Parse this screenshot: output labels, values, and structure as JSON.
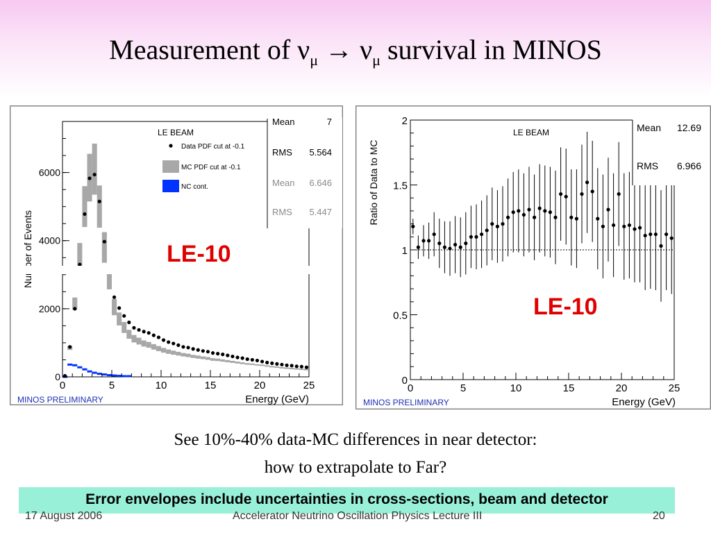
{
  "slide": {
    "title_pre": "Measurement of ν",
    "title_sub1": "μ",
    "title_arrow": " → ν",
    "title_sub2": "μ",
    "title_post": " survival in MINOS",
    "caption_line1": "See 10%-40% data-MC differences in near detector:",
    "caption_line2": "how to extrapolate to Far?",
    "banner": "Error envelopes include uncertainties in cross-sections, beam and detector",
    "footer_date": "17 August 2006",
    "footer_course": "Accelerator Neutrino Oscillation Physics Lecture III",
    "footer_page": "20"
  },
  "colors": {
    "le_label": "#e00000",
    "mc_band": "#a8a8a8",
    "nc_fill": "#0033ff",
    "preliminary": "#1a2fb5",
    "banner": "#99f0d8"
  },
  "chart_data": [
    {
      "type": "scatter",
      "overlay_label": "LE-10",
      "beam_label": "LE BEAM",
      "xlabel": "Energy (GeV)",
      "ylabel": "Number of Events",
      "xlim": [
        0,
        25
      ],
      "ylim": [
        0,
        7500
      ],
      "xticks": [
        "0",
        "5",
        "10",
        "15",
        "20",
        "25"
      ],
      "yticks": [
        "0",
        "2000",
        "4000",
        "6000"
      ],
      "preliminary": "MINOS PRELIMINARY",
      "legend": [
        {
          "label": "Data PDF cut at -0.1",
          "marker": "dot"
        },
        {
          "label": "MC   PDF cut at -0.1",
          "marker": "gray-box"
        },
        {
          "label": "NC cont.",
          "marker": "blue-box"
        }
      ],
      "stats": [
        {
          "key": "Mean",
          "value": "7",
          "faded": false
        },
        {
          "key": "RMS",
          "value": "5.564",
          "faded": false
        },
        {
          "key": "Mean",
          "value": "6.646",
          "faded": true
        },
        {
          "key": "RMS",
          "value": "5.447",
          "faded": true
        }
      ],
      "series": [
        {
          "name": "Data PDF cut at -0.1",
          "x": [
            0.25,
            0.75,
            1.25,
            1.75,
            2.25,
            2.75,
            3.25,
            3.75,
            4.25,
            4.75,
            5.25,
            5.75,
            6.25,
            6.75,
            7.25,
            7.75,
            8.25,
            8.75,
            9.25,
            9.75,
            10.25,
            10.75,
            11.25,
            11.75,
            12.25,
            12.75,
            13.25,
            13.75,
            14.25,
            14.75,
            15.25,
            15.75,
            16.25,
            16.75,
            17.25,
            17.75,
            18.25,
            18.75,
            19.25,
            19.75,
            20.25,
            20.75,
            21.25,
            21.75,
            22.25,
            22.75,
            23.25,
            23.75,
            24.25,
            24.75
          ],
          "y": [
            30,
            880,
            2000,
            3300,
            4780,
            5830,
            5940,
            5150,
            3970,
            3130,
            2340,
            2020,
            1790,
            1600,
            1440,
            1380,
            1330,
            1290,
            1220,
            1160,
            1080,
            1020,
            980,
            930,
            880,
            860,
            820,
            790,
            760,
            740,
            700,
            680,
            660,
            630,
            600,
            570,
            550,
            520,
            500,
            480,
            450,
            420,
            400,
            380,
            360,
            340,
            330,
            310,
            300,
            280
          ]
        },
        {
          "name": "MC   PDF cut at -0.1",
          "x": [
            0.25,
            0.75,
            1.25,
            1.75,
            2.25,
            2.75,
            3.25,
            3.75,
            4.25,
            4.75,
            5.25,
            5.75,
            6.25,
            6.75,
            7.25,
            7.75,
            8.25,
            8.75,
            9.25,
            9.75,
            10.25,
            10.75,
            11.25,
            11.75,
            12.25,
            12.75,
            13.25,
            13.75,
            14.25,
            14.75,
            15.25,
            15.75,
            16.25,
            16.75,
            17.25,
            17.75,
            18.25,
            18.75,
            19.25,
            19.75,
            20.25,
            20.75,
            21.25,
            21.75,
            22.25,
            22.75,
            23.25,
            23.75,
            24.25,
            24.75
          ],
          "y": [
            20,
            850,
            2150,
            3550,
            5000,
            5850,
            6100,
            5000,
            3800,
            2900,
            2050,
            1700,
            1450,
            1250,
            1120,
            1050,
            980,
            940,
            880,
            830,
            780,
            740,
            710,
            680,
            650,
            630,
            600,
            580,
            560,
            540,
            510,
            500,
            480,
            460,
            440,
            420,
            400,
            380,
            370,
            350,
            340,
            320,
            300,
            290,
            270,
            260,
            250,
            240,
            230,
            220
          ],
          "band_halfwidth": [
            20,
            60,
            180,
            380,
            600,
            700,
            750,
            620,
            450,
            330,
            240,
            190,
            160,
            130,
            110,
            100,
            90,
            85,
            80,
            75,
            70,
            65,
            60,
            55,
            50,
            50,
            45,
            45,
            40,
            40,
            38,
            36,
            34,
            32,
            30,
            28,
            26,
            24,
            22,
            20,
            20,
            18,
            18,
            16,
            16,
            15,
            14,
            13,
            12,
            12
          ]
        },
        {
          "name": "NC cont.",
          "x": [
            0.25,
            0.75,
            1.25,
            1.75,
            2.25,
            2.75,
            3.25,
            3.75,
            4.25,
            4.75,
            5.25,
            5.75,
            6.25,
            6.75
          ],
          "y": [
            0,
            360,
            340,
            280,
            220,
            160,
            120,
            90,
            70,
            50,
            40,
            30,
            20,
            20
          ]
        }
      ]
    },
    {
      "type": "scatter",
      "overlay_label": "LE-10",
      "beam_label": "LE BEAM",
      "xlabel": "Energy (GeV)",
      "ylabel": "Ratio of Data to MC",
      "xlim": [
        0,
        25
      ],
      "ylim": [
        0,
        2
      ],
      "xticks": [
        "0",
        "5",
        "10",
        "15",
        "20",
        "25"
      ],
      "yticks": [
        "0",
        "0.5",
        "1",
        "1.5",
        "2"
      ],
      "preliminary": "MINOS PRELIMINARY",
      "stats": [
        {
          "key": "Mean",
          "value": "12.69"
        },
        {
          "key": "RMS",
          "value": "6.966"
        }
      ],
      "reference_line": 1,
      "series": [
        {
          "name": "",
          "x": [
            0.25,
            0.75,
            1.25,
            1.75,
            2.25,
            2.75,
            3.25,
            3.75,
            4.25,
            4.75,
            5.25,
            5.75,
            6.25,
            6.75,
            7.25,
            7.75,
            8.25,
            8.75,
            9.25,
            9.75,
            10.25,
            10.75,
            11.25,
            11.75,
            12.25,
            12.75,
            13.25,
            13.75,
            14.25,
            14.75,
            15.25,
            15.75,
            16.25,
            16.75,
            17.25,
            17.75,
            18.25,
            18.75,
            19.25,
            19.75,
            20.25,
            20.75,
            21.25,
            21.75,
            22.25,
            22.75,
            23.25,
            23.75,
            24.25,
            24.75
          ],
          "y": [
            1.18,
            1.02,
            1.07,
            1.07,
            1.12,
            1.05,
            1.02,
            1.01,
            1.04,
            1.02,
            1.05,
            1.1,
            1.1,
            1.12,
            1.15,
            1.2,
            1.18,
            1.2,
            1.25,
            1.29,
            1.3,
            1.27,
            1.31,
            1.25,
            1.32,
            1.3,
            1.29,
            1.25,
            1.43,
            1.41,
            1.25,
            1.24,
            1.43,
            1.52,
            1.45,
            1.24,
            1.18,
            1.31,
            1.19,
            1.43,
            1.18,
            1.19,
            1.16,
            1.17,
            1.11,
            1.12,
            1.12,
            1.03,
            1.12,
            1.09
          ],
          "err": [
            0.06,
            0.09,
            0.12,
            0.14,
            0.17,
            0.19,
            0.2,
            0.21,
            0.22,
            0.23,
            0.24,
            0.24,
            0.25,
            0.26,
            0.27,
            0.28,
            0.28,
            0.29,
            0.3,
            0.31,
            0.32,
            0.32,
            0.33,
            0.33,
            0.34,
            0.35,
            0.35,
            0.36,
            0.36,
            0.37,
            0.37,
            0.38,
            0.38,
            0.39,
            0.39,
            0.39,
            0.4,
            0.4,
            0.4,
            0.4,
            0.41,
            0.41,
            0.41,
            0.42,
            0.42,
            0.42,
            0.43,
            0.43,
            0.43,
            0.43
          ]
        }
      ]
    }
  ]
}
